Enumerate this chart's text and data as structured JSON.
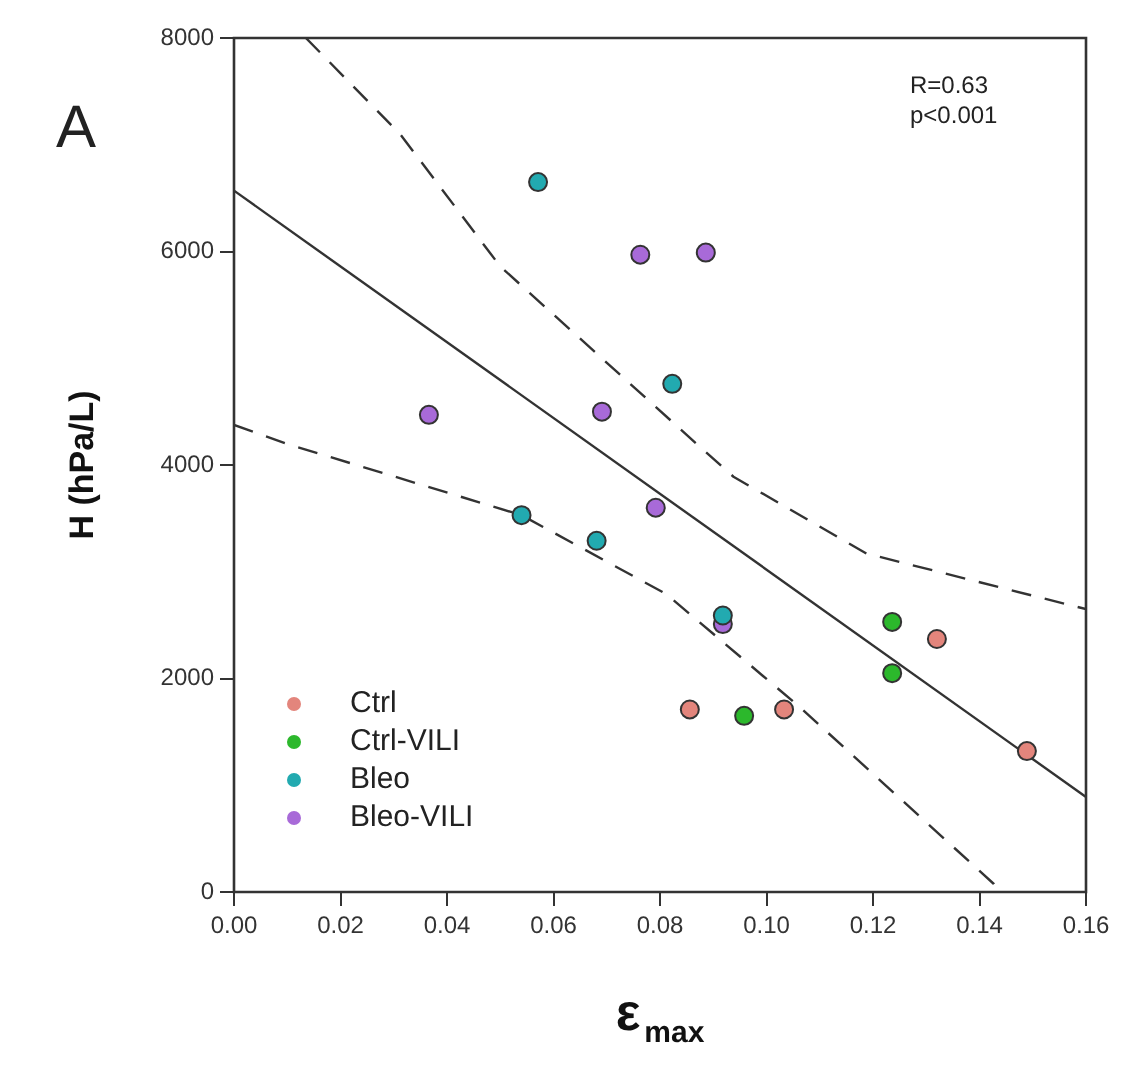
{
  "chart_data": {
    "type": "scatter",
    "xlabel": "ε$_{max}$",
    "ylabel": "H (hPa/L)",
    "annotations": [
      "A",
      "R=0.63",
      "p<0.001"
    ],
    "xlim": [
      0,
      0.16
    ],
    "xticks": [
      {
        "value": 0,
        "label": "0.00"
      },
      {
        "value": 0.02,
        "label": "0.02"
      },
      {
        "value": 0.04,
        "label": "0.04"
      },
      {
        "value": 0.06,
        "label": "0.06"
      },
      {
        "value": 0.08,
        "label": "0.08"
      },
      {
        "value": 0.1,
        "label": "0.10"
      },
      {
        "value": 0.12,
        "label": "0.12"
      },
      {
        "value": 0.14,
        "label": "0.14"
      },
      {
        "value": 0.16,
        "label": "0.16"
      }
    ],
    "ylim": [
      0,
      8000
    ],
    "yticks": [
      0,
      2000,
      4000,
      6000,
      8000
    ],
    "grid": false,
    "legend": "bottom left",
    "marker": "circle",
    "series": [
      {
        "name": "Ctrl",
        "color": "#e3857c",
        "x": [
          0.0856,
          0.1033,
          0.132,
          0.1489
        ],
        "values": [
          1710,
          1710,
          2370,
          1320
        ]
      },
      {
        "name": "Ctrl-VILI",
        "color": "#2cb82c",
        "x": [
          0.0958,
          0.1236,
          0.1236
        ],
        "values": [
          1650,
          2530,
          2050
        ]
      },
      {
        "name": "Bleo",
        "color": "#22aab0",
        "x": [
          0.0571,
          0.0823,
          0.054,
          0.0681,
          0.0918
        ],
        "values": [
          6650,
          4760,
          3530,
          3290,
          2590
        ]
      },
      {
        "name": "Bleo-VILI",
        "color": "#a86ad8",
        "x": [
          0.0763,
          0.0886,
          0.0366,
          0.0691,
          0.0792,
          0.0918
        ],
        "values": [
          5970,
          5990,
          4470,
          4500,
          3600,
          2510
        ]
      },
      {
        "type": "line",
        "color": "#333333",
        "marker": "none",
        "line_style": "solid",
        "x": [
          0,
          0.16
        ],
        "values": [
          6570,
          890
        ]
      },
      {
        "type": "line",
        "color": "#333333",
        "marker": "none",
        "line_style": "dashed",
        "x": [
          0.0135,
          0.0312,
          0.05,
          0.0875,
          0.0938,
          0.1188,
          0.16
        ],
        "values": [
          8000,
          7100,
          5860,
          4170,
          3890,
          3170,
          2650
        ]
      },
      {
        "type": "line",
        "color": "#333333",
        "marker": "none",
        "line_style": "dashed",
        "x": [
          0,
          0.0098,
          0.054,
          0.0812,
          0.1063,
          0.1427,
          0.1435
        ],
        "values": [
          4375,
          4200,
          3530,
          2790,
          1730,
          75,
          0
        ]
      }
    ]
  }
}
